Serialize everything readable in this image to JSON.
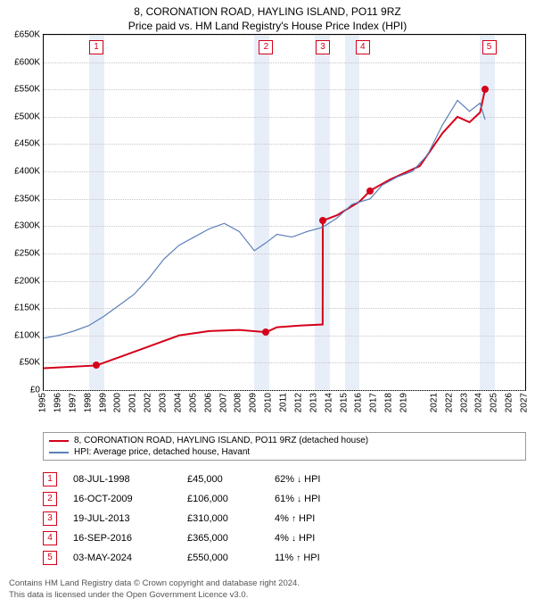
{
  "title": {
    "line1": "8, CORONATION ROAD, HAYLING ISLAND, PO11 9RZ",
    "line2": "Price paid vs. HM Land Registry's House Price Index (HPI)"
  },
  "chart": {
    "type": "line",
    "xlim": [
      1995,
      2027
    ],
    "ylim": [
      0,
      650
    ],
    "ytick_step": 50,
    "y_prefix": "£",
    "y_suffix": "K",
    "x_ticks": [
      1995,
      1996,
      1997,
      1998,
      1999,
      2000,
      2001,
      2002,
      2003,
      2004,
      2005,
      2006,
      2007,
      2008,
      2009,
      2010,
      2011,
      2012,
      2013,
      2014,
      2015,
      2016,
      2017,
      2018,
      2019,
      2021,
      2022,
      2023,
      2024,
      2025,
      2026,
      2027
    ],
    "band_years": [
      [
        1998,
        1999
      ],
      [
        2009,
        2010
      ],
      [
        2013,
        2014
      ],
      [
        2015,
        2016
      ],
      [
        2024,
        2025
      ]
    ],
    "grid_color": "#c6c6c6",
    "band_color": "#e8eef8",
    "background_color": "#ffffff",
    "series": [
      {
        "id": "property",
        "label": "8, CORONATION ROAD, HAYLING ISLAND, PO11 9RZ (detached house)",
        "color": "#d4001a",
        "width": 2,
        "data": [
          [
            1995.0,
            40
          ],
          [
            1998.5,
            45
          ],
          [
            2000.0,
            60
          ],
          [
            2002.0,
            80
          ],
          [
            2004.0,
            100
          ],
          [
            2006.0,
            108
          ],
          [
            2008.0,
            110
          ],
          [
            2009.78,
            106
          ],
          [
            2009.79,
            106
          ],
          [
            2010.5,
            115
          ],
          [
            2012.0,
            118
          ],
          [
            2013.54,
            120
          ],
          [
            2013.55,
            310
          ],
          [
            2014.5,
            320
          ],
          [
            2016.0,
            345
          ],
          [
            2016.7,
            365
          ],
          [
            2018.0,
            385
          ],
          [
            2020.0,
            410
          ],
          [
            2021.5,
            470
          ],
          [
            2022.5,
            500
          ],
          [
            2023.3,
            490
          ],
          [
            2024.0,
            508
          ],
          [
            2024.33,
            550
          ]
        ],
        "points": [
          [
            1998.5,
            45
          ],
          [
            2009.78,
            106
          ],
          [
            2013.55,
            310
          ],
          [
            2016.7,
            365
          ],
          [
            2024.33,
            550
          ]
        ]
      },
      {
        "id": "hpi",
        "label": "HPI: Average price, detached house, Havant",
        "color": "#5b7fb8",
        "width": 1.2,
        "data": [
          [
            1995.0,
            95
          ],
          [
            1996.0,
            100
          ],
          [
            1997.0,
            108
          ],
          [
            1998.0,
            118
          ],
          [
            1999.0,
            135
          ],
          [
            2000.0,
            155
          ],
          [
            2001.0,
            175
          ],
          [
            2002.0,
            205
          ],
          [
            2003.0,
            240
          ],
          [
            2004.0,
            265
          ],
          [
            2005.0,
            280
          ],
          [
            2006.0,
            295
          ],
          [
            2007.0,
            305
          ],
          [
            2008.0,
            290
          ],
          [
            2009.0,
            255
          ],
          [
            2009.8,
            270
          ],
          [
            2010.5,
            285
          ],
          [
            2011.5,
            280
          ],
          [
            2012.5,
            290
          ],
          [
            2013.55,
            298
          ],
          [
            2014.5,
            315
          ],
          [
            2015.5,
            340
          ],
          [
            2016.7,
            350
          ],
          [
            2017.5,
            375
          ],
          [
            2018.5,
            390
          ],
          [
            2019.5,
            400
          ],
          [
            2020.5,
            430
          ],
          [
            2021.5,
            485
          ],
          [
            2022.5,
            530
          ],
          [
            2023.3,
            510
          ],
          [
            2024.0,
            525
          ],
          [
            2024.33,
            495
          ]
        ]
      }
    ],
    "markers": [
      {
        "n": "1",
        "year": 1998.5,
        "color": "#d4001a"
      },
      {
        "n": "2",
        "year": 2009.78,
        "color": "#d4001a"
      },
      {
        "n": "3",
        "year": 2013.55,
        "color": "#d4001a"
      },
      {
        "n": "4",
        "year": 2016.2,
        "color": "#d4001a"
      },
      {
        "n": "5",
        "year": 2024.6,
        "color": "#d4001a"
      }
    ]
  },
  "legend": [
    {
      "color": "#d4001a",
      "label": "8, CORONATION ROAD, HAYLING ISLAND, PO11 9RZ (detached house)"
    },
    {
      "color": "#5b7fb8",
      "label": "HPI: Average price, detached house, Havant"
    }
  ],
  "transactions": [
    {
      "n": "1",
      "date": "08-JUL-1998",
      "price": "£45,000",
      "pct": "62%",
      "dir": "down",
      "vs": "HPI",
      "color": "#d4001a"
    },
    {
      "n": "2",
      "date": "16-OCT-2009",
      "price": "£106,000",
      "pct": "61%",
      "dir": "down",
      "vs": "HPI",
      "color": "#d4001a"
    },
    {
      "n": "3",
      "date": "19-JUL-2013",
      "price": "£310,000",
      "pct": "4%",
      "dir": "up",
      "vs": "HPI",
      "color": "#d4001a"
    },
    {
      "n": "4",
      "date": "16-SEP-2016",
      "price": "£365,000",
      "pct": "4%",
      "dir": "down",
      "vs": "HPI",
      "color": "#d4001a"
    },
    {
      "n": "5",
      "date": "03-MAY-2024",
      "price": "£550,000",
      "pct": "11%",
      "dir": "up",
      "vs": "HPI",
      "color": "#d4001a"
    }
  ],
  "footer": {
    "line1": "Contains HM Land Registry data © Crown copyright and database right 2024.",
    "line2": "This data is licensed under the Open Government Licence v3.0."
  }
}
